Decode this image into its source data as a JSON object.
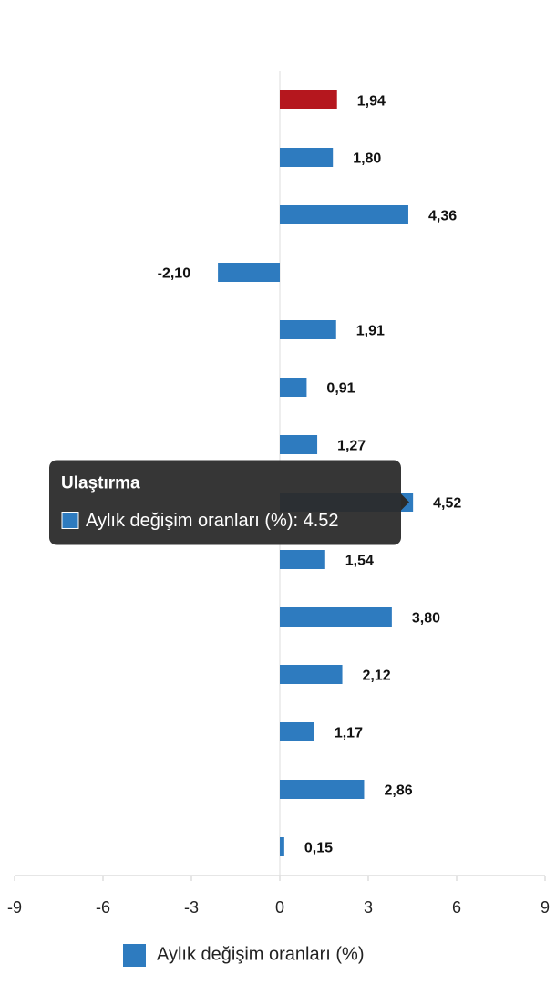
{
  "chart_data": {
    "type": "bar",
    "orientation": "horizontal",
    "categories": [
      null,
      null,
      null,
      null,
      null,
      null,
      null,
      "Ulaştırma",
      null,
      null,
      null,
      null,
      null,
      null
    ],
    "series": [
      {
        "name": "Aylık değişim oranları (%)",
        "color": "#2e7bbf",
        "highlight_color": "#b5171e",
        "values": [
          1.94,
          1.8,
          4.36,
          -2.1,
          1.91,
          0.91,
          1.27,
          4.52,
          1.54,
          3.8,
          2.12,
          1.17,
          2.86,
          0.15
        ],
        "value_labels": [
          "1,94",
          "1,80",
          "4,36",
          "-2,10",
          "1,91",
          "0,91",
          "1,27",
          "4,52",
          "1,54",
          "3,80",
          "2,12",
          "1,17",
          "2,86",
          "0,15"
        ]
      }
    ],
    "xlim": [
      -9,
      9
    ],
    "xticks": [
      -9,
      -6,
      -3,
      0,
      3,
      6,
      9
    ],
    "tooltip": {
      "title": "Ulaştırma",
      "text": "Aylık değişim oranları (%): 4.52"
    }
  }
}
